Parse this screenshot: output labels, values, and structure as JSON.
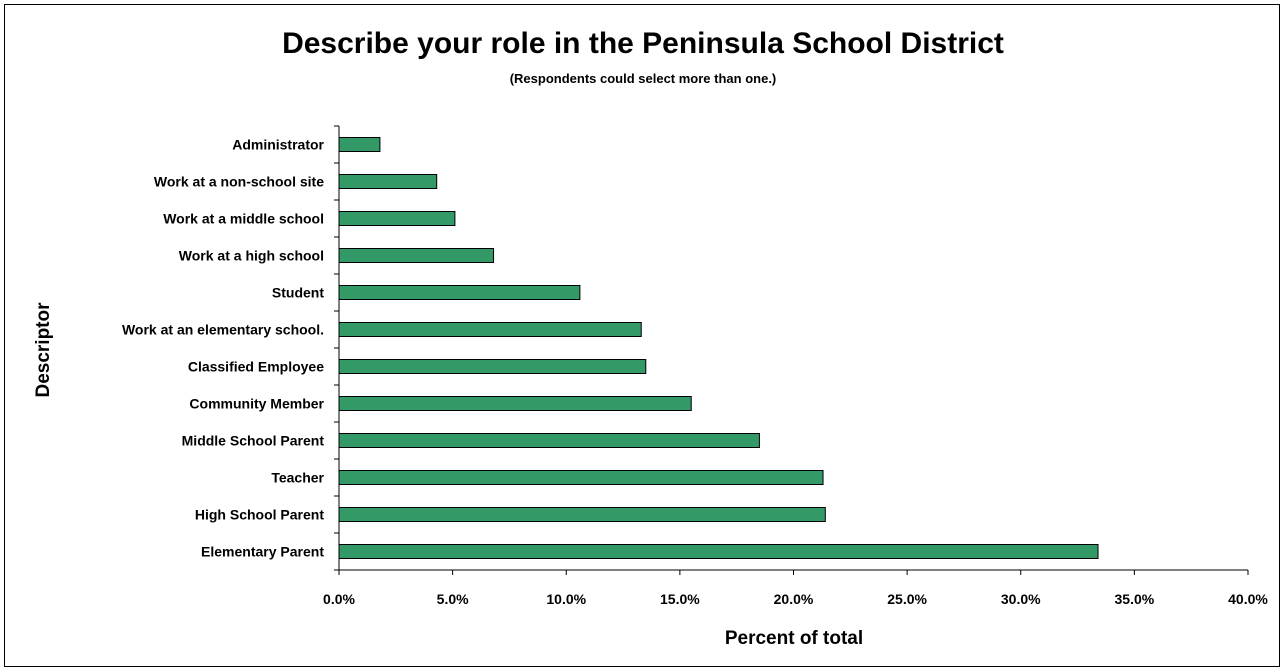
{
  "chart_data": {
    "type": "bar",
    "orientation": "horizontal",
    "title": "Describe your role in the Peninsula School District",
    "subtitle": "(Respondents could select more than one.)",
    "xlabel": "Percent of total",
    "ylabel": "Descriptor",
    "xlim": [
      0,
      40
    ],
    "x_ticks": [
      "0.0%",
      "5.0%",
      "10.0%",
      "15.0%",
      "20.0%",
      "25.0%",
      "30.0%",
      "35.0%",
      "40.0%"
    ],
    "categories": [
      "Administrator",
      "Work at a non-school site",
      "Work at a middle school",
      "Work at a high school",
      "Student",
      "Work at an elementary school.",
      "Classified Employee",
      "Community Member",
      "Middle School Parent",
      "Teacher",
      "High School Parent",
      "Elementary Parent"
    ],
    "values": [
      1.8,
      4.3,
      5.1,
      6.8,
      10.6,
      13.3,
      13.5,
      15.5,
      18.5,
      21.3,
      21.4,
      33.4
    ],
    "bar_color": "#339966",
    "grid": false,
    "legend": "none"
  }
}
